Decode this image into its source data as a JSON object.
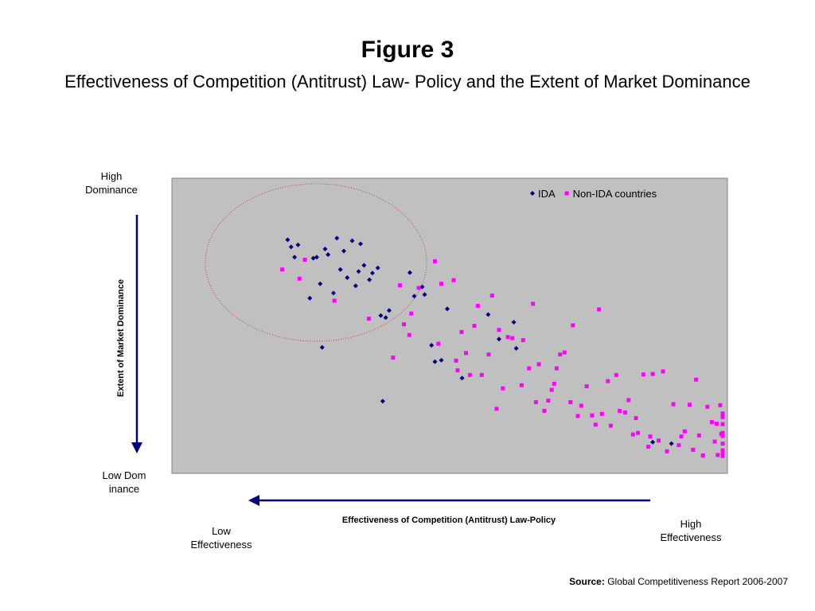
{
  "figure": {
    "title": "Figure 3",
    "subtitle": "Effectiveness of Competition (Antitrust) Law- Policy and the Extent of Market Dominance"
  },
  "axes": {
    "y_top_label": "High Dominance",
    "y_bottom_label": "Low Dominance",
    "y_title": "Extent of Market Dominance",
    "x_title": "Effectiveness of Competition (Antitrust) Law-Policy",
    "x_left_label": "Low Effectiveness",
    "x_right_label": "High Effectiveness",
    "arrow_color": "#000080"
  },
  "source": {
    "prefix": "Source:",
    "text": "Global Competitiveness Report 2006-2007"
  },
  "chart_data": {
    "type": "scatter",
    "title": "Figure 3",
    "xlabel": "Effectiveness of Competition (Antitrust) Law-Policy",
    "ylabel": "Extent of Market Dominance",
    "xlim": [
      0,
      100
    ],
    "ylim": [
      0,
      100
    ],
    "grid": false,
    "legend_position": "top-right",
    "plot_background": "#C0C0C0",
    "series": [
      {
        "name": "IDA",
        "color": "#000080",
        "marker": "diamond",
        "points": [
          [
            11.7,
            88.4
          ],
          [
            12.4,
            85.6
          ],
          [
            13.1,
            81.6
          ],
          [
            13.8,
            86.4
          ],
          [
            16.2,
            65.6
          ],
          [
            16.9,
            81.2
          ],
          [
            17.6,
            81.6
          ],
          [
            18.3,
            71.2
          ],
          [
            18.7,
            46.4
          ],
          [
            19.3,
            84.8
          ],
          [
            19.9,
            82.6
          ],
          [
            21.0,
            67.6
          ],
          [
            21.7,
            89.0
          ],
          [
            22.4,
            76.8
          ],
          [
            23.1,
            84.0
          ],
          [
            23.8,
            73.6
          ],
          [
            24.8,
            88.0
          ],
          [
            25.5,
            70.4
          ],
          [
            26.1,
            76.0
          ],
          [
            26.5,
            86.8
          ],
          [
            27.2,
            78.4
          ],
          [
            28.3,
            72.8
          ],
          [
            28.9,
            75.4
          ],
          [
            30.0,
            77.4
          ],
          [
            30.6,
            58.8
          ],
          [
            31.0,
            25.4
          ],
          [
            31.6,
            58.0
          ],
          [
            32.3,
            60.8
          ],
          [
            36.5,
            75.6
          ],
          [
            37.4,
            66.4
          ],
          [
            39.0,
            70.0
          ],
          [
            39.5,
            67.0
          ],
          [
            40.9,
            47.2
          ],
          [
            41.6,
            40.8
          ],
          [
            42.9,
            41.4
          ],
          [
            44.1,
            61.4
          ],
          [
            47.1,
            34.4
          ],
          [
            52.4,
            59.2
          ],
          [
            54.6,
            49.6
          ],
          [
            57.6,
            56.2
          ],
          [
            58.1,
            46.0
          ],
          [
            85.8,
            9.4
          ],
          [
            89.6,
            8.8
          ]
        ]
      },
      {
        "name": "Non-IDA countries",
        "color": "#FF00FF",
        "marker": "square",
        "points": [
          [
            10.6,
            76.8
          ],
          [
            14.1,
            73.2
          ],
          [
            15.2,
            80.6
          ],
          [
            21.2,
            64.6
          ],
          [
            28.2,
            57.6
          ],
          [
            33.1,
            42.4
          ],
          [
            34.5,
            70.6
          ],
          [
            35.3,
            55.4
          ],
          [
            36.4,
            51.2
          ],
          [
            36.8,
            59.6
          ],
          [
            38.3,
            69.6
          ],
          [
            41.6,
            80.0
          ],
          [
            42.3,
            47.8
          ],
          [
            42.9,
            71.2
          ],
          [
            45.4,
            72.6
          ],
          [
            45.9,
            41.2
          ],
          [
            46.2,
            37.4
          ],
          [
            47.0,
            52.4
          ],
          [
            47.9,
            44.2
          ],
          [
            48.7,
            35.6
          ],
          [
            49.6,
            54.8
          ],
          [
            50.3,
            62.6
          ],
          [
            51.1,
            35.6
          ],
          [
            52.5,
            43.6
          ],
          [
            53.2,
            66.6
          ],
          [
            54.1,
            22.4
          ],
          [
            54.6,
            53.2
          ],
          [
            55.4,
            30.4
          ],
          [
            56.4,
            50.4
          ],
          [
            57.3,
            50.0
          ],
          [
            59.2,
            31.6
          ],
          [
            59.5,
            49.2
          ],
          [
            60.7,
            38.2
          ],
          [
            61.5,
            63.4
          ],
          [
            62.1,
            25.0
          ],
          [
            62.7,
            39.8
          ],
          [
            63.8,
            21.6
          ],
          [
            64.6,
            25.6
          ],
          [
            65.3,
            29.8
          ],
          [
            65.8,
            32.2
          ],
          [
            66.3,
            38.2
          ],
          [
            67.0,
            43.6
          ],
          [
            67.9,
            44.4
          ],
          [
            69.1,
            25.0
          ],
          [
            69.6,
            55.0
          ],
          [
            70.6,
            19.6
          ],
          [
            71.3,
            23.6
          ],
          [
            72.4,
            31.2
          ],
          [
            73.5,
            19.8
          ],
          [
            74.2,
            16.2
          ],
          [
            74.9,
            61.2
          ],
          [
            75.5,
            20.4
          ],
          [
            76.7,
            33.2
          ],
          [
            77.3,
            15.8
          ],
          [
            78.4,
            35.6
          ],
          [
            79.1,
            21.6
          ],
          [
            80.2,
            21.0
          ],
          [
            80.9,
            25.8
          ],
          [
            81.8,
            12.4
          ],
          [
            82.4,
            18.8
          ],
          [
            82.8,
            13.0
          ],
          [
            83.9,
            35.8
          ],
          [
            84.9,
            7.6
          ],
          [
            85.3,
            11.6
          ],
          [
            85.8,
            36.0
          ],
          [
            87.0,
            10.0
          ],
          [
            87.9,
            37.0
          ],
          [
            88.7,
            5.8
          ],
          [
            90.0,
            24.2
          ],
          [
            91.1,
            8.2
          ],
          [
            91.6,
            11.6
          ],
          [
            92.3,
            13.6
          ],
          [
            93.3,
            24.0
          ],
          [
            94.0,
            6.4
          ],
          [
            94.6,
            33.8
          ],
          [
            95.2,
            12.0
          ],
          [
            96.0,
            4.2
          ],
          [
            96.9,
            23.2
          ],
          [
            97.8,
            17.2
          ],
          [
            98.4,
            9.6
          ],
          [
            98.8,
            16.6
          ],
          [
            99.0,
            4.4
          ],
          [
            99.5,
            23.8
          ],
          [
            99.7,
            12.6
          ],
          [
            100.0,
            4.0
          ],
          [
            100.0,
            20.6
          ],
          [
            100.0,
            16.4
          ],
          [
            100.0,
            13.0
          ],
          [
            100.0,
            20.0
          ],
          [
            100.0,
            8.8
          ],
          [
            100.0,
            11.8
          ],
          [
            100.0,
            19.2
          ],
          [
            100.0,
            5.6
          ],
          [
            100.0,
            6.2
          ],
          [
            100.0,
            4.8
          ]
        ]
      }
    ],
    "annotations": [
      {
        "type": "ellipse",
        "description": "dotted circle around low-effectiveness high-dominance cluster",
        "color": "#C04040"
      }
    ]
  }
}
